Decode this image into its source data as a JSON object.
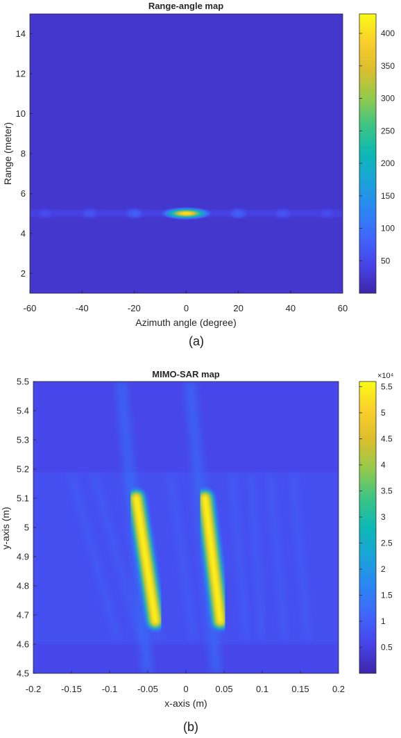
{
  "chart_data": [
    {
      "type": "heatmap",
      "title": "Range-angle map",
      "xlabel": "Azimuth angle (degree)",
      "ylabel": "Range (meter)",
      "xlim": [
        -60,
        60
      ],
      "ylim": [
        1,
        15
      ],
      "xticks": [
        -60,
        -40,
        -20,
        0,
        20,
        40,
        60
      ],
      "yticks": [
        2,
        4,
        6,
        8,
        10,
        12,
        14
      ],
      "colorbar": {
        "range": [
          0,
          430
        ],
        "ticks": [
          50,
          100,
          150,
          200,
          250,
          300,
          350,
          400
        ],
        "multiplier": ""
      },
      "colormap": "parula",
      "background_value": 25,
      "features": [
        {
          "kind": "main-lobe",
          "x": 0,
          "y": 5.0,
          "peak": 420,
          "x_width": 11,
          "y_width": 0.35
        },
        {
          "kind": "side-lobe",
          "x": -20,
          "y": 5.0,
          "peak": 85,
          "x_width": 5,
          "y_width": 0.35
        },
        {
          "kind": "side-lobe",
          "x": 20,
          "y": 5.0,
          "peak": 85,
          "x_width": 5,
          "y_width": 0.35
        },
        {
          "kind": "side-lobe",
          "x": -37,
          "y": 5.0,
          "peak": 70,
          "x_width": 5,
          "y_width": 0.35
        },
        {
          "kind": "side-lobe",
          "x": 37,
          "y": 5.0,
          "peak": 70,
          "x_width": 5,
          "y_width": 0.35
        },
        {
          "kind": "side-lobe",
          "x": -54,
          "y": 5.0,
          "peak": 60,
          "x_width": 5,
          "y_width": 0.35
        },
        {
          "kind": "side-lobe",
          "x": 54,
          "y": 5.0,
          "peak": 60,
          "x_width": 5,
          "y_width": 0.35
        }
      ],
      "label": "(a)"
    },
    {
      "type": "heatmap",
      "title": "MIMO-SAR map",
      "xlabel": "x-axis (m)",
      "ylabel": "y-axis (m)",
      "xlim": [
        -0.2,
        0.2
      ],
      "ylim": [
        4.5,
        5.5
      ],
      "xticks": [
        -0.2,
        -0.15,
        -0.1,
        -0.05,
        0,
        0.05,
        0.1,
        0.15,
        0.2
      ],
      "yticks": [
        4.5,
        4.6,
        4.7,
        4.8,
        4.9,
        5,
        5.1,
        5.2,
        5.3,
        5.4,
        5.5
      ],
      "colorbar": {
        "range": [
          0,
          5.6
        ],
        "ticks": [
          0.5,
          1,
          1.5,
          2,
          2.5,
          3,
          3.5,
          4,
          4.5,
          5,
          5.5
        ],
        "multiplier": "×10⁴"
      },
      "colormap": "parula",
      "background_value": 0.6,
      "features": [
        {
          "kind": "target",
          "x_top": -0.065,
          "y_top": 5.1,
          "x_bottom": -0.04,
          "y_bottom": 4.68,
          "peak": 5.5
        },
        {
          "kind": "target",
          "x_top": 0.025,
          "y_top": 5.1,
          "x_bottom": 0.045,
          "y_bottom": 4.68,
          "peak": 5.5
        }
      ],
      "label": "(b)"
    }
  ]
}
